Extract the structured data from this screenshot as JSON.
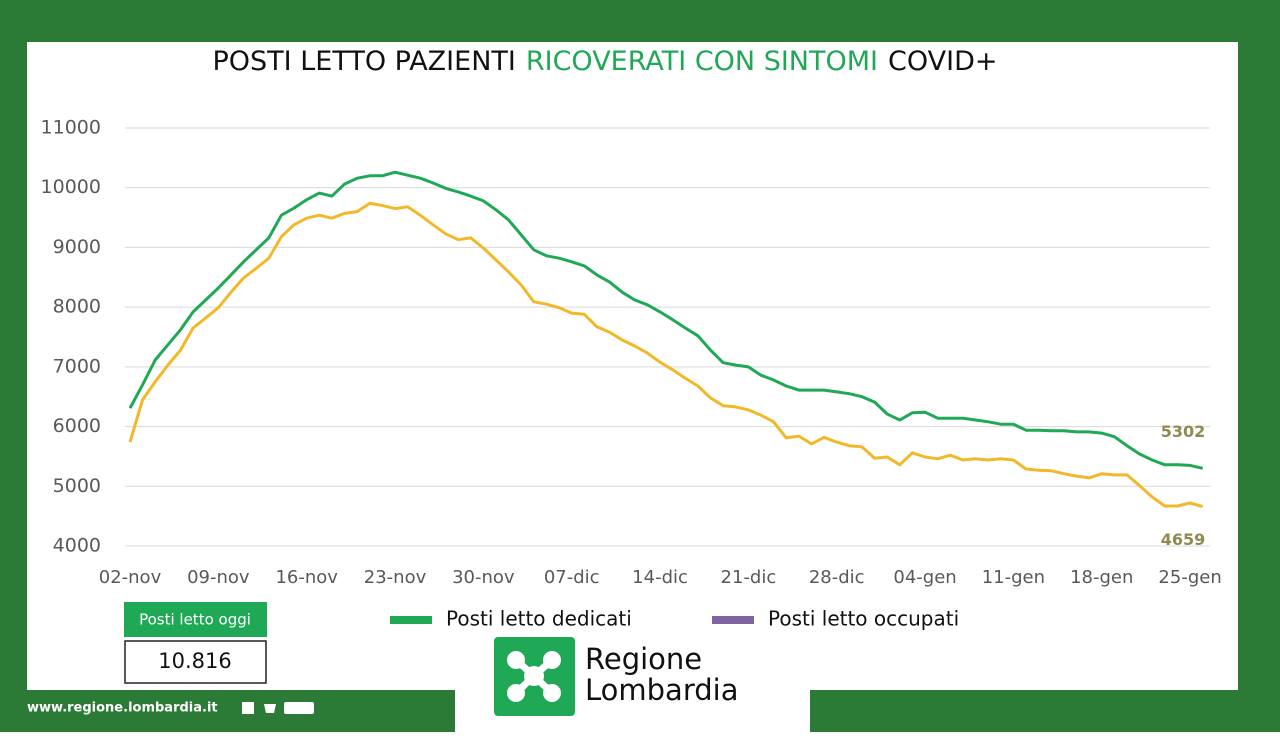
{
  "chart_data": {
    "type": "line",
    "title_parts": [
      {
        "text": "POSTI LETTO PAZIENTI",
        "color": "#111111"
      },
      {
        "text": "RICOVERATI CON SINTOMI",
        "color": "#1fa855"
      },
      {
        "text": "COVID+",
        "color": "#111111"
      }
    ],
    "categories": [
      "02-nov",
      null,
      null,
      null,
      null,
      null,
      null,
      "09-nov",
      null,
      null,
      null,
      null,
      null,
      null,
      "16-nov",
      null,
      null,
      null,
      null,
      null,
      null,
      "23-nov",
      null,
      null,
      null,
      null,
      null,
      null,
      "30-nov",
      null,
      null,
      null,
      null,
      null,
      null,
      "07-dic",
      null,
      null,
      null,
      null,
      null,
      null,
      "14-dic",
      null,
      null,
      null,
      null,
      null,
      null,
      "21-dic",
      null,
      null,
      null,
      null,
      null,
      null,
      "28-dic",
      null,
      null,
      null,
      null,
      null,
      null,
      "04-gen",
      null,
      null,
      null,
      null,
      null,
      null,
      "11-gen",
      null,
      null,
      null,
      null,
      null,
      null,
      "18-gen",
      null,
      null,
      null,
      null,
      null,
      null,
      "25-gen",
      null
    ],
    "series": [
      {
        "name": "Posti letto dedicati",
        "color": "#1fa855",
        "legend_color": "#1fa855",
        "values": [
          6310,
          6700,
          7115,
          7370,
          7620,
          7920,
          8120,
          8320,
          8540,
          8760,
          8960,
          9160,
          9540,
          9660,
          9800,
          9910,
          9860,
          10060,
          10160,
          10200,
          10200,
          10260,
          10210,
          10160,
          10080,
          9990,
          9930,
          9860,
          9780,
          9630,
          9460,
          9210,
          8960,
          8860,
          8820,
          8760,
          8690,
          8540,
          8420,
          8250,
          8120,
          8040,
          7920,
          7790,
          7650,
          7520,
          7280,
          7070,
          7030,
          7000,
          6860,
          6780,
          6680,
          6610,
          6610,
          6610,
          6580,
          6550,
          6500,
          6410,
          6210,
          6110,
          6230,
          6240,
          6140,
          6140,
          6140,
          6110,
          6080,
          6040,
          6040,
          5940,
          5940,
          5930,
          5930,
          5910,
          5910,
          5890,
          5830,
          5680,
          5540,
          5440,
          5360,
          5360,
          5350,
          5302
        ]
      },
      {
        "name": "Posti letto occupati",
        "color": "#f2b829",
        "legend_color": "#8064a2",
        "values": [
          5740,
          6450,
          6750,
          7030,
          7280,
          7650,
          7820,
          7990,
          8250,
          8490,
          8650,
          8820,
          9180,
          9380,
          9490,
          9540,
          9490,
          9570,
          9600,
          9740,
          9700,
          9650,
          9680,
          9540,
          9380,
          9230,
          9130,
          9160,
          8990,
          8790,
          8590,
          8370,
          8090,
          8050,
          7990,
          7900,
          7880,
          7670,
          7580,
          7450,
          7350,
          7230,
          7080,
          6950,
          6810,
          6680,
          6480,
          6350,
          6330,
          6280,
          6190,
          6080,
          5810,
          5840,
          5710,
          5820,
          5740,
          5680,
          5660,
          5470,
          5490,
          5360,
          5560,
          5490,
          5460,
          5520,
          5440,
          5460,
          5440,
          5460,
          5440,
          5290,
          5270,
          5260,
          5210,
          5170,
          5140,
          5210,
          5190,
          5190,
          5010,
          4820,
          4670,
          4670,
          4720,
          4659
        ]
      }
    ],
    "ylim": [
      4000,
      11000
    ],
    "yticks": [
      4000,
      5000,
      6000,
      7000,
      8000,
      9000,
      10000,
      11000
    ],
    "grid": true,
    "end_label_color": "#8f8a4f",
    "today_box": {
      "label": "Posti letto oggi",
      "value": "10.816"
    }
  },
  "footer": {
    "url": "www.regione.lombardia.it",
    "logo_line1": "Regione",
    "logo_line2": "Lombardia"
  }
}
